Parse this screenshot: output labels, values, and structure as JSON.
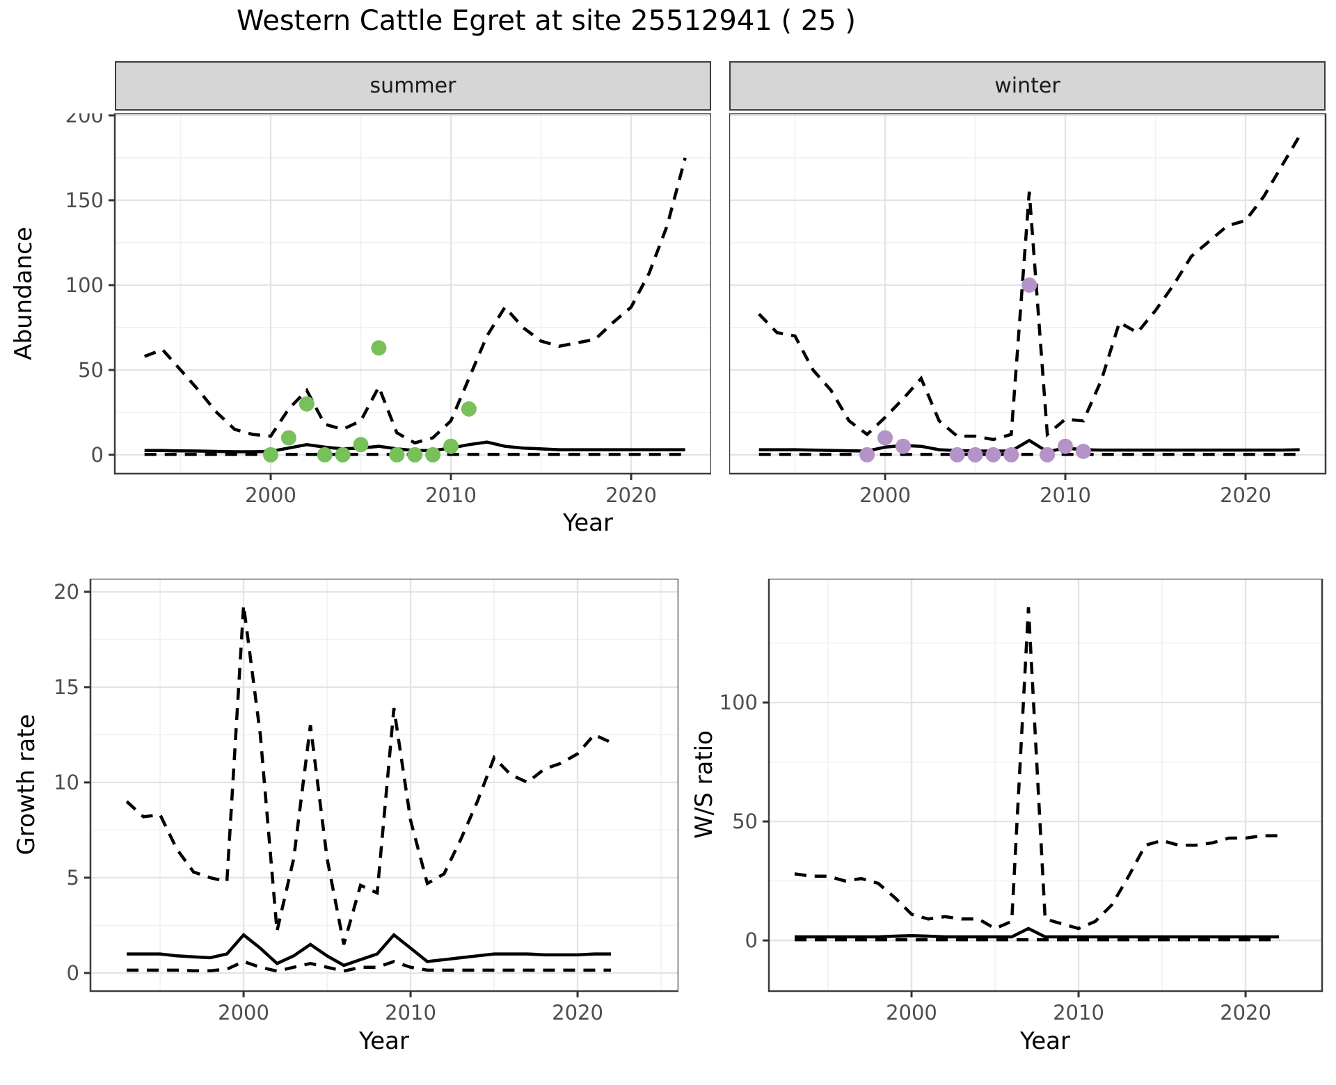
{
  "figure": {
    "title": "Western Cattle Egret at site 25512941 ( 25 )"
  },
  "facets": {
    "summer": "summer",
    "winter": "winter"
  },
  "axes": {
    "abundance_label": "Abundance",
    "growth_label": "Growth rate",
    "ws_label": "W/S ratio",
    "year_label": "Year"
  },
  "colors": {
    "summer_point": "#77C05A",
    "winter_point": "#B494C8",
    "line": "#000000",
    "panel_border": "#3C3C3C",
    "panel_bg": "#FFFFFF",
    "grid_major": "#E4E4E4",
    "grid_minor": "#F1F1F1",
    "strip_bg": "#D6D6D6",
    "axis_text": "#4D4D4D",
    "tick_mark": "#333333"
  },
  "chart_data": [
    {
      "id": "abundance-summer",
      "type": "line",
      "facet": "summer",
      "xlabel": "Year",
      "ylabel": "Abundance",
      "xlim": [
        1991.35,
        2024.44
      ],
      "ylim": [
        -11.1,
        201.2
      ],
      "x_ticks": [
        2000,
        2010,
        2020
      ],
      "x_minor": [
        1995,
        2005,
        2015
      ],
      "y_ticks": [
        0,
        50,
        100,
        150,
        200
      ],
      "y_minor": [
        25,
        75,
        125,
        175
      ],
      "grid": true,
      "legend": "none",
      "series": [
        {
          "name": "upper_ci",
          "style": "dashed",
          "x": [
            1993,
            1994,
            1995,
            1996,
            1997,
            1998,
            1999,
            2000,
            2001,
            2002,
            2003,
            2004,
            2005,
            2006,
            2007,
            2008,
            2009,
            2010,
            2011,
            2012,
            2013,
            2014,
            2015,
            2016,
            2017,
            2018,
            2019,
            2020,
            2021,
            2022,
            2023
          ],
          "y": [
            58,
            62,
            50,
            38,
            25,
            15,
            12,
            11,
            27,
            38,
            18,
            15,
            20,
            40,
            13,
            7,
            10,
            20,
            45,
            70,
            87,
            75,
            67,
            64,
            66,
            68,
            78,
            87,
            107,
            135,
            175
          ]
        },
        {
          "name": "median",
          "style": "solid",
          "x": [
            1993,
            1994,
            1995,
            1996,
            1997,
            1998,
            1999,
            2000,
            2001,
            2002,
            2003,
            2004,
            2005,
            2006,
            2007,
            2008,
            2009,
            2010,
            2011,
            2012,
            2013,
            2014,
            2015,
            2016,
            2017,
            2018,
            2019,
            2020,
            2021,
            2022,
            2023
          ],
          "y": [
            2.5,
            2.5,
            2.3,
            2.2,
            2.0,
            1.8,
            1.8,
            2.0,
            4.0,
            6.0,
            4.5,
            3.5,
            4.0,
            5.0,
            3.5,
            2.5,
            2.5,
            4.0,
            6.0,
            7.5,
            5.0,
            4.0,
            3.5,
            3.0,
            3.0,
            3.0,
            3.0,
            3.0,
            3.0,
            3.0,
            3.0
          ]
        },
        {
          "name": "lower_ci",
          "style": "dashed",
          "x": [
            1993,
            1994,
            1995,
            1996,
            1997,
            1998,
            1999,
            2000,
            2001,
            2002,
            2003,
            2004,
            2005,
            2006,
            2007,
            2008,
            2009,
            2010,
            2011,
            2012,
            2013,
            2014,
            2015,
            2016,
            2017,
            2018,
            2019,
            2020,
            2021,
            2022,
            2023
          ],
          "y": [
            0.2,
            0.2,
            0.2,
            0.2,
            0.2,
            0.2,
            0.2,
            0.2,
            0.2,
            0.2,
            0.2,
            0.2,
            0.2,
            0.2,
            0.2,
            0.2,
            0.2,
            0.2,
            0.2,
            0.2,
            0.2,
            0.2,
            0.2,
            0.2,
            0.2,
            0.2,
            0.2,
            0.2,
            0.2,
            0.2,
            0.2
          ]
        },
        {
          "name": "observations",
          "style": "points",
          "color_key": "summer_point",
          "x": [
            2000,
            2001,
            2002,
            2003,
            2004,
            2005,
            2006,
            2007,
            2008,
            2009,
            2010,
            2011
          ],
          "y": [
            0,
            10,
            30,
            0,
            0,
            6,
            63,
            0,
            0,
            0,
            5,
            27
          ]
        }
      ]
    },
    {
      "id": "abundance-winter",
      "type": "line",
      "facet": "winter",
      "xlabel": "Year",
      "ylabel": "Abundance",
      "xlim": [
        1991.35,
        2024.44
      ],
      "ylim": [
        -11.1,
        201.2
      ],
      "x_ticks": [
        2000,
        2010,
        2020
      ],
      "x_minor": [
        1995,
        2005,
        2015
      ],
      "y_ticks": [
        0,
        50,
        100,
        150,
        200
      ],
      "y_minor": [
        25,
        75,
        125,
        175
      ],
      "grid": true,
      "legend": "none",
      "series": [
        {
          "name": "upper_ci",
          "style": "dashed",
          "x": [
            1993,
            1994,
            1995,
            1996,
            1997,
            1998,
            1999,
            2000,
            2001,
            2002,
            2003,
            2004,
            2005,
            2006,
            2007,
            2008,
            2009,
            2010,
            2011,
            2012,
            2013,
            2014,
            2015,
            2016,
            2017,
            2018,
            2019,
            2020,
            2021,
            2022,
            2023
          ],
          "y": [
            83,
            72,
            70,
            50,
            38,
            20,
            12,
            22,
            33,
            45,
            20,
            11,
            11,
            9,
            12,
            155,
            12,
            21,
            20,
            44,
            78,
            72,
            85,
            100,
            117,
            126,
            135,
            138,
            152,
            170,
            188
          ]
        },
        {
          "name": "median",
          "style": "solid",
          "x": [
            1993,
            1994,
            1995,
            1996,
            1997,
            1998,
            1999,
            2000,
            2001,
            2002,
            2003,
            2004,
            2005,
            2006,
            2007,
            2008,
            2009,
            2010,
            2011,
            2012,
            2013,
            2014,
            2015,
            2016,
            2017,
            2018,
            2019,
            2020,
            2021,
            2022,
            2023
          ],
          "y": [
            3,
            3,
            3,
            2.8,
            2.6,
            2.4,
            2.2,
            4.5,
            5.5,
            5,
            3,
            2.5,
            2.2,
            2.2,
            2.2,
            8.5,
            1.8,
            4,
            3,
            2.8,
            2.8,
            2.8,
            2.8,
            2.8,
            2.8,
            2.8,
            2.8,
            2.8,
            2.8,
            2.8,
            3
          ]
        },
        {
          "name": "lower_ci",
          "style": "dashed",
          "x": [
            1993,
            1994,
            1995,
            1996,
            1997,
            1998,
            1999,
            2000,
            2001,
            2002,
            2003,
            2004,
            2005,
            2006,
            2007,
            2008,
            2009,
            2010,
            2011,
            2012,
            2013,
            2014,
            2015,
            2016,
            2017,
            2018,
            2019,
            2020,
            2021,
            2022,
            2023
          ],
          "y": [
            0.2,
            0.2,
            0.2,
            0.2,
            0.2,
            0.2,
            0.2,
            0.2,
            0.2,
            0.2,
            0.2,
            0.2,
            0.2,
            0.2,
            0.2,
            0.2,
            0.2,
            0.2,
            0.2,
            0.2,
            0.2,
            0.2,
            0.2,
            0.2,
            0.2,
            0.2,
            0.2,
            0.2,
            0.2,
            0.2,
            0.2
          ]
        },
        {
          "name": "observations",
          "style": "points",
          "color_key": "winter_point",
          "x": [
            1999,
            2000,
            2001,
            2004,
            2005,
            2006,
            2007,
            2008,
            2009,
            2010,
            2011
          ],
          "y": [
            0,
            10,
            5,
            0,
            0,
            0,
            0,
            100,
            0,
            5,
            2
          ]
        }
      ]
    },
    {
      "id": "growth",
      "type": "line",
      "facet": "",
      "xlabel": "Year",
      "ylabel": "Growth rate",
      "xlim": [
        1990.83,
        2026.04
      ],
      "ylim": [
        -0.95,
        20.69
      ],
      "x_ticks": [
        2000,
        2010,
        2020
      ],
      "x_minor": [
        1995,
        2005,
        2015,
        2025
      ],
      "y_ticks": [
        0,
        5,
        10,
        15,
        20
      ],
      "y_minor": [
        2.5,
        7.5,
        12.5,
        17.5
      ],
      "grid": true,
      "legend": "none",
      "series": [
        {
          "name": "upper_ci",
          "style": "dashed",
          "x": [
            1993,
            1994,
            1995,
            1996,
            1997,
            1998,
            1999,
            2000,
            2001,
            2002,
            2003,
            2004,
            2005,
            2006,
            2007,
            2008,
            2009,
            2010,
            2011,
            2012,
            2013,
            2014,
            2015,
            2016,
            2017,
            2018,
            2019,
            2020,
            2021,
            2022
          ],
          "y": [
            9.0,
            8.2,
            8.3,
            6.5,
            5.3,
            5.0,
            4.8,
            19.3,
            12.5,
            2.2,
            6.0,
            13.0,
            6.0,
            1.5,
            4.6,
            4.2,
            13.9,
            8.0,
            4.7,
            5.2,
            7.0,
            9.0,
            11.3,
            10.4,
            10.0,
            10.7,
            11.0,
            11.5,
            12.5,
            12.1
          ]
        },
        {
          "name": "median",
          "style": "solid",
          "x": [
            1993,
            1994,
            1995,
            1996,
            1997,
            1998,
            1999,
            2000,
            2001,
            2002,
            2003,
            2004,
            2005,
            2006,
            2007,
            2008,
            2009,
            2010,
            2011,
            2012,
            2013,
            2014,
            2015,
            2016,
            2017,
            2018,
            2019,
            2020,
            2021,
            2022
          ],
          "y": [
            1.0,
            1.0,
            1.0,
            0.9,
            0.85,
            0.8,
            1.0,
            2.0,
            1.3,
            0.5,
            0.9,
            1.5,
            0.9,
            0.4,
            0.7,
            1.0,
            2.0,
            1.3,
            0.6,
            0.7,
            0.8,
            0.9,
            1.0,
            1.0,
            1.0,
            0.95,
            0.95,
            0.95,
            1.0,
            1.0
          ]
        },
        {
          "name": "lower_ci",
          "style": "dashed",
          "x": [
            1993,
            1994,
            1995,
            1996,
            1997,
            1998,
            1999,
            2000,
            2001,
            2002,
            2003,
            2004,
            2005,
            2006,
            2007,
            2008,
            2009,
            2010,
            2011,
            2012,
            2013,
            2014,
            2015,
            2016,
            2017,
            2018,
            2019,
            2020,
            2021,
            2022
          ],
          "y": [
            0.15,
            0.15,
            0.15,
            0.15,
            0.12,
            0.12,
            0.2,
            0.6,
            0.3,
            0.1,
            0.3,
            0.5,
            0.3,
            0.1,
            0.3,
            0.3,
            0.6,
            0.3,
            0.15,
            0.15,
            0.15,
            0.15,
            0.15,
            0.15,
            0.15,
            0.15,
            0.15,
            0.15,
            0.15,
            0.15
          ]
        }
      ]
    },
    {
      "id": "ws",
      "type": "line",
      "facet": "",
      "xlabel": "Year",
      "ylabel": "W/S ratio",
      "xlim": [
        1991.46,
        2024.58
      ],
      "ylim": [
        -21.3,
        152.05
      ],
      "x_ticks": [
        2000,
        2010,
        2020
      ],
      "x_minor": [
        1995,
        2005,
        2015
      ],
      "y_ticks": [
        0,
        50,
        100
      ],
      "y_minor": [
        25,
        75,
        125
      ],
      "grid": true,
      "legend": "none",
      "series": [
        {
          "name": "upper_ci",
          "style": "dashed",
          "x": [
            1993,
            1994,
            1995,
            1996,
            1997,
            1998,
            1999,
            2000,
            2001,
            2002,
            2003,
            2004,
            2005,
            2006,
            2007,
            2008,
            2009,
            2010,
            2011,
            2012,
            2013,
            2014,
            2015,
            2016,
            2017,
            2018,
            2019,
            2020,
            2021,
            2022
          ],
          "y": [
            28,
            27,
            27,
            25,
            26,
            24,
            18,
            11,
            9,
            10,
            9,
            9,
            5,
            8,
            140,
            9,
            7,
            5,
            8,
            15,
            27,
            40,
            42,
            40,
            40,
            41,
            43,
            43,
            44,
            44
          ]
        },
        {
          "name": "median",
          "style": "solid",
          "x": [
            1993,
            1994,
            1995,
            1996,
            1997,
            1998,
            1999,
            2000,
            2001,
            2002,
            2003,
            2004,
            2005,
            2006,
            2007,
            2008,
            2009,
            2010,
            2011,
            2012,
            2013,
            2014,
            2015,
            2016,
            2017,
            2018,
            2019,
            2020,
            2021,
            2022
          ],
          "y": [
            1.5,
            1.5,
            1.5,
            1.5,
            1.5,
            1.5,
            1.8,
            2.0,
            1.8,
            1.5,
            1.5,
            1.5,
            1.5,
            1.5,
            5.0,
            1.5,
            1.5,
            1.5,
            1.5,
            1.5,
            1.5,
            1.5,
            1.5,
            1.5,
            1.5,
            1.5,
            1.5,
            1.5,
            1.5,
            1.5
          ]
        },
        {
          "name": "lower_ci",
          "style": "dashed",
          "x": [
            1993,
            1994,
            1995,
            1996,
            1997,
            1998,
            1999,
            2000,
            2001,
            2002,
            2003,
            2004,
            2005,
            2006,
            2007,
            2008,
            2009,
            2010,
            2011,
            2012,
            2013,
            2014,
            2015,
            2016,
            2017,
            2018,
            2019,
            2020,
            2021,
            2022
          ],
          "y": [
            0.3,
            0.3,
            0.3,
            0.3,
            0.3,
            0.3,
            0.3,
            0.3,
            0.3,
            0.3,
            0.3,
            0.3,
            0.3,
            0.3,
            0.3,
            0.3,
            0.3,
            0.3,
            0.3,
            0.3,
            0.3,
            0.3,
            0.3,
            0.3,
            0.3,
            0.3,
            0.3,
            0.3,
            0.3,
            0.3
          ]
        }
      ]
    }
  ]
}
